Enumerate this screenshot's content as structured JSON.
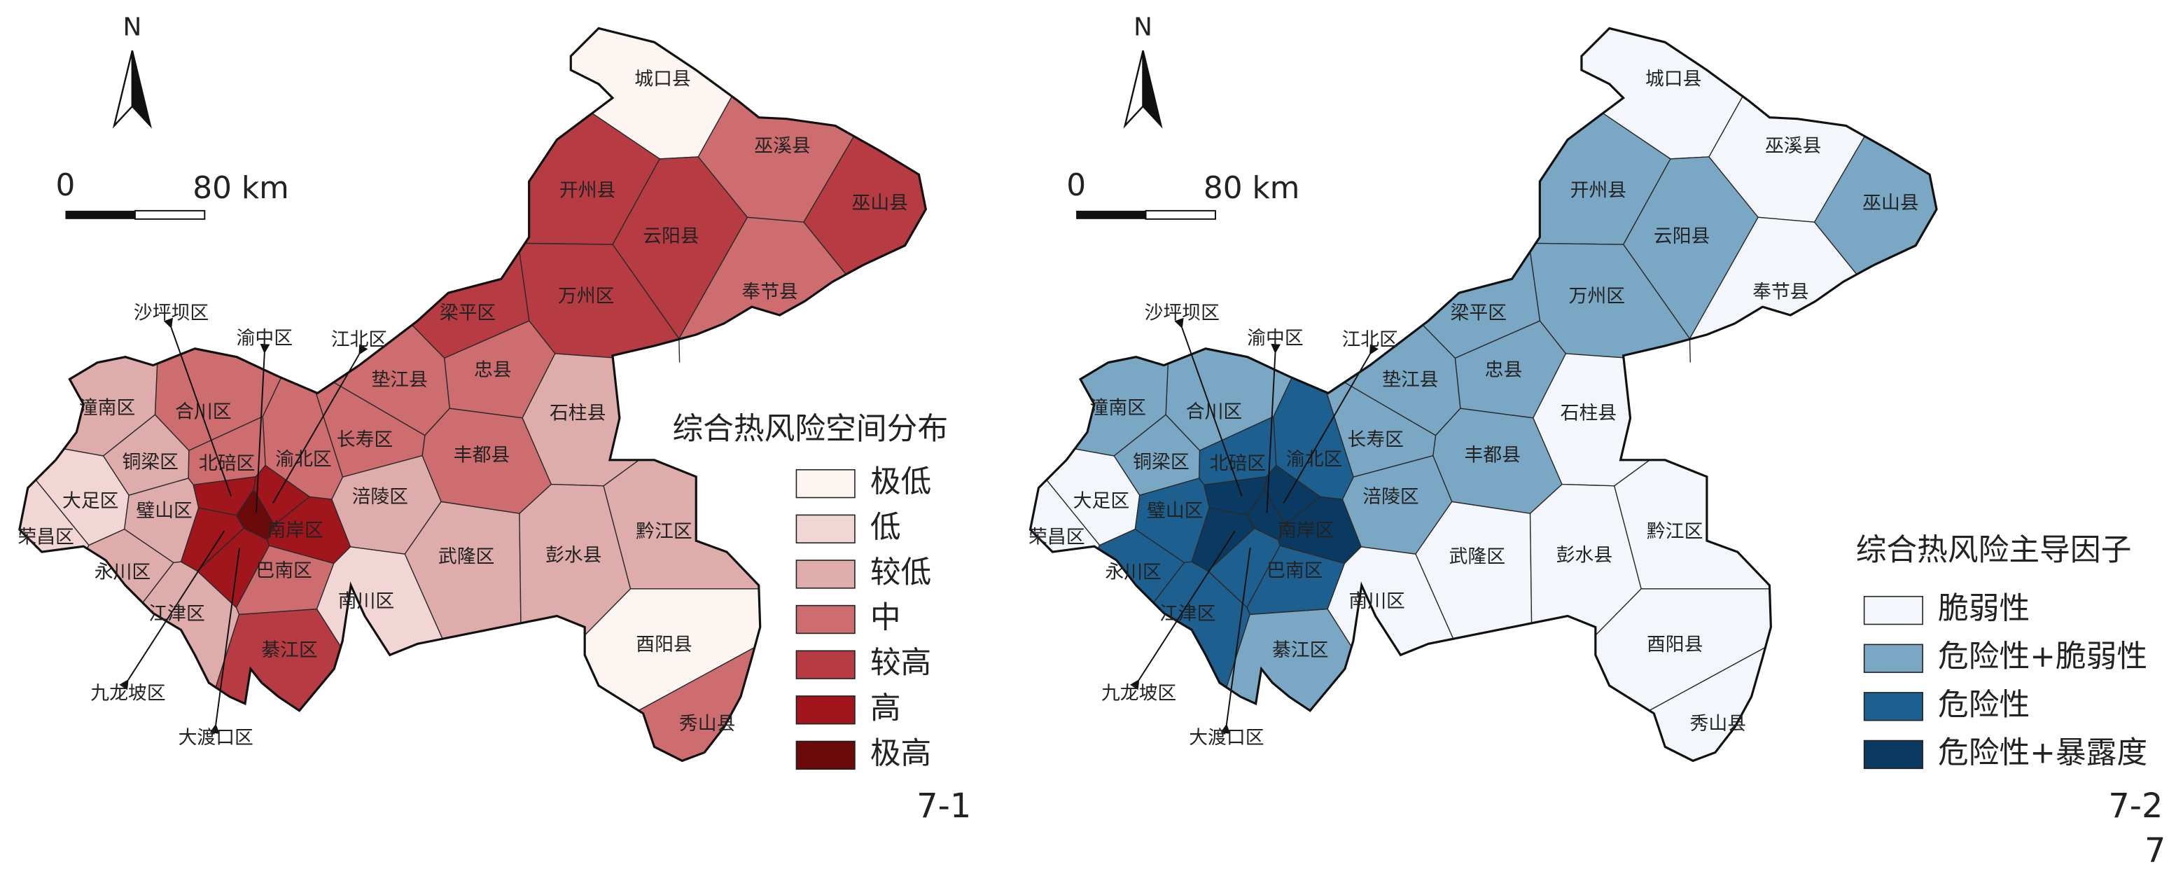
{
  "figure": "7",
  "maps": [
    {
      "label": "7-1",
      "north": "N",
      "scale": [
        "0",
        "80 km"
      ],
      "legend_title": "综合热风险空间分布",
      "legend": [
        {
          "label": "极低",
          "color": "#fdf5f1"
        },
        {
          "label": "低",
          "color": "#f2d5d5"
        },
        {
          "label": "较低",
          "color": "#dfacac"
        },
        {
          "label": "中",
          "color": "#cd6d70"
        },
        {
          "label": "较高",
          "color": "#b63b42"
        },
        {
          "label": "高",
          "color": "#a0161c"
        },
        {
          "label": "极高",
          "color": "#6a0a0a"
        }
      ],
      "regions": [
        {
          "name": "城口县",
          "class": "极低"
        },
        {
          "name": "巫溪县",
          "class": "中"
        },
        {
          "name": "巫山县",
          "class": "较高"
        },
        {
          "name": "开州县",
          "class": "较高"
        },
        {
          "name": "云阳县",
          "class": "较高"
        },
        {
          "name": "奉节县",
          "class": "中"
        },
        {
          "name": "万州区",
          "class": "较高"
        },
        {
          "name": "梁平区",
          "class": "较高"
        },
        {
          "name": "忠县",
          "class": "中"
        },
        {
          "name": "垫江县",
          "class": "中"
        },
        {
          "name": "石柱县",
          "class": "较低"
        },
        {
          "name": "丰都县",
          "class": "中"
        },
        {
          "name": "长寿区",
          "class": "中"
        },
        {
          "name": "涪陵区",
          "class": "较低"
        },
        {
          "name": "武隆区",
          "class": "较低"
        },
        {
          "name": "彭水县",
          "class": "较低"
        },
        {
          "name": "黔江区",
          "class": "较低"
        },
        {
          "name": "酉阳县",
          "class": "极低"
        },
        {
          "name": "秀山县",
          "class": "中"
        },
        {
          "name": "南川区",
          "class": "低"
        },
        {
          "name": "綦江区",
          "class": "较高"
        },
        {
          "name": "巴南区",
          "class": "中"
        },
        {
          "name": "南岸区",
          "class": "高"
        },
        {
          "name": "渝北区",
          "class": "中"
        },
        {
          "name": "北碚区",
          "class": "中"
        },
        {
          "name": "合川区",
          "class": "中"
        },
        {
          "name": "潼南区",
          "class": "较低"
        },
        {
          "name": "铜梁区",
          "class": "较低"
        },
        {
          "name": "大足区",
          "class": "低"
        },
        {
          "name": "荣昌区",
          "class": "低"
        },
        {
          "name": "璧山区",
          "class": "较低"
        },
        {
          "name": "永川区",
          "class": "较低"
        },
        {
          "name": "江津区",
          "class": "较低"
        },
        {
          "name": "沙坪坝区",
          "class": "高"
        },
        {
          "name": "渝中区",
          "class": "极高"
        },
        {
          "name": "江北区",
          "class": "高"
        },
        {
          "name": "九龙坡区",
          "class": "高"
        },
        {
          "name": "大渡口区",
          "class": "高"
        }
      ]
    },
    {
      "label": "7-2",
      "north": "N",
      "scale": [
        "0",
        "80 km"
      ],
      "legend_title": "综合热风险主导因子",
      "legend": [
        {
          "label": "脆弱性",
          "color": "#f3f7fc"
        },
        {
          "label": "危险性+脆弱性",
          "color": "#7aa8c4"
        },
        {
          "label": "危险性",
          "color": "#1d5f8e"
        },
        {
          "label": "危险性+暴露度",
          "color": "#0a3a62"
        }
      ],
      "regions": [
        {
          "name": "城口县",
          "class": "脆弱性"
        },
        {
          "name": "巫溪县",
          "class": "脆弱性"
        },
        {
          "name": "巫山县",
          "class": "危险性+脆弱性"
        },
        {
          "name": "开州县",
          "class": "危险性+脆弱性"
        },
        {
          "name": "云阳县",
          "class": "危险性+脆弱性"
        },
        {
          "name": "奉节县",
          "class": "脆弱性"
        },
        {
          "name": "万州区",
          "class": "危险性+脆弱性"
        },
        {
          "name": "梁平区",
          "class": "危险性+脆弱性"
        },
        {
          "name": "忠县",
          "class": "危险性+脆弱性"
        },
        {
          "name": "垫江县",
          "class": "危险性+脆弱性"
        },
        {
          "name": "石柱县",
          "class": "脆弱性"
        },
        {
          "name": "丰都县",
          "class": "危险性+脆弱性"
        },
        {
          "name": "长寿区",
          "class": "危险性+脆弱性"
        },
        {
          "name": "涪陵区",
          "class": "危险性+脆弱性"
        },
        {
          "name": "武隆区",
          "class": "脆弱性"
        },
        {
          "name": "彭水县",
          "class": "脆弱性"
        },
        {
          "name": "黔江区",
          "class": "脆弱性"
        },
        {
          "name": "酉阳县",
          "class": "脆弱性"
        },
        {
          "name": "秀山县",
          "class": "脆弱性"
        },
        {
          "name": "南川区",
          "class": "脆弱性"
        },
        {
          "name": "綦江区",
          "class": "危险性+脆弱性"
        },
        {
          "name": "巴南区",
          "class": "危险性"
        },
        {
          "name": "南岸区",
          "class": "危险性+暴露度"
        },
        {
          "name": "渝北区",
          "class": "危险性"
        },
        {
          "name": "北碚区",
          "class": "危险性"
        },
        {
          "name": "合川区",
          "class": "危险性+脆弱性"
        },
        {
          "name": "潼南区",
          "class": "危险性+脆弱性"
        },
        {
          "name": "铜梁区",
          "class": "危险性+脆弱性"
        },
        {
          "name": "大足区",
          "class": "脆弱性"
        },
        {
          "name": "荣昌区",
          "class": "脆弱性"
        },
        {
          "name": "璧山区",
          "class": "危险性"
        },
        {
          "name": "永川区",
          "class": "危险性"
        },
        {
          "name": "江津区",
          "class": "危险性"
        },
        {
          "name": "沙坪坝区",
          "class": "危险性+暴露度"
        },
        {
          "name": "渝中区",
          "class": "危险性+暴露度"
        },
        {
          "name": "江北区",
          "class": "危险性+暴露度"
        },
        {
          "name": "九龙坡区",
          "class": "危险性+暴露度"
        },
        {
          "name": "大渡口区",
          "class": "危险性"
        }
      ]
    }
  ]
}
